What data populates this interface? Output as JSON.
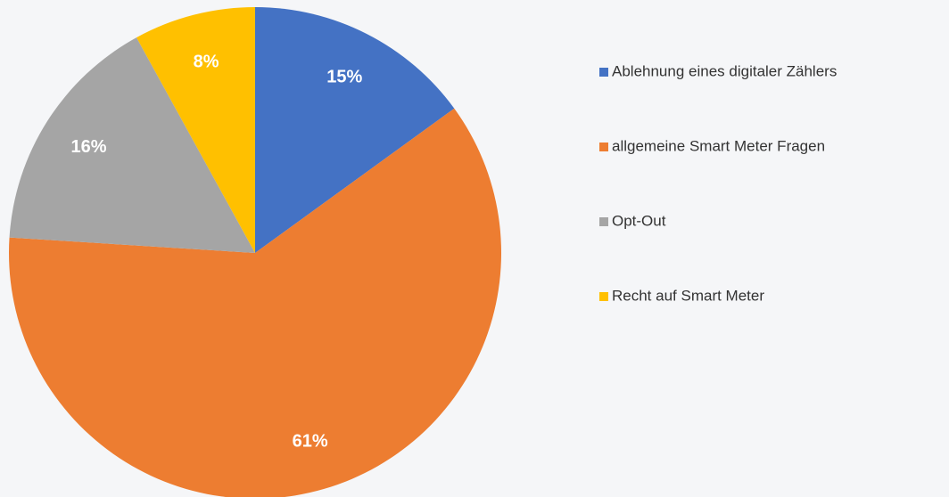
{
  "chart_data": {
    "type": "pie",
    "categories": [
      "Ablehnung eines digitaler Zählers",
      "allgemeine Smart Meter Fragen",
      "Opt-Out",
      "Recht auf Smart Meter"
    ],
    "values": [
      15,
      61,
      16,
      8
    ],
    "value_labels": [
      "15%",
      "61%",
      "16%",
      "8%"
    ],
    "colors": [
      "#4472c4",
      "#ed7d31",
      "#a5a5a5",
      "#ffc000"
    ],
    "legend": "right"
  }
}
